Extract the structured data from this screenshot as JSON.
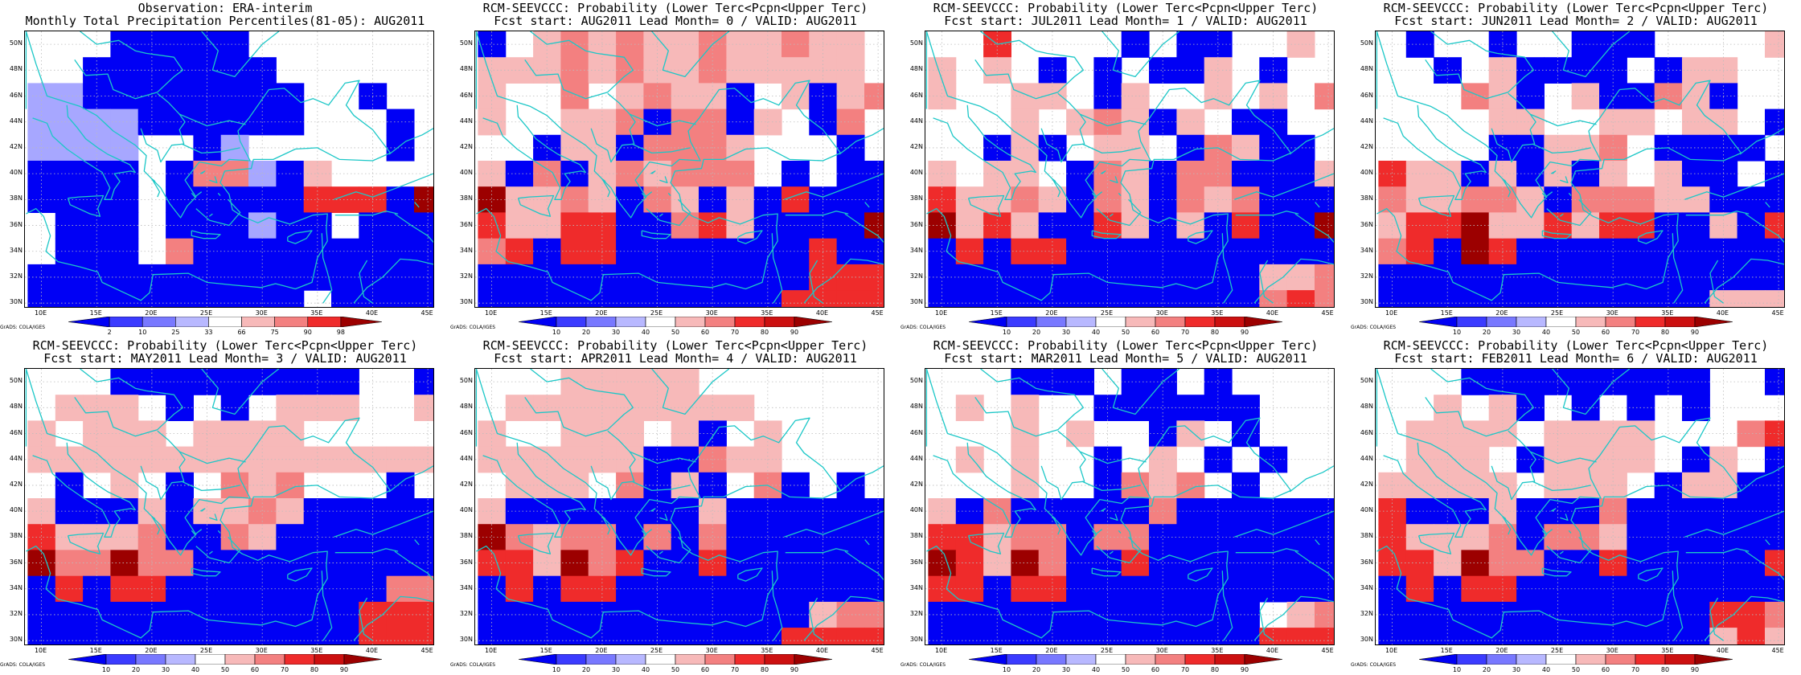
{
  "credit": "GrADS: COLA/IGES",
  "axes": {
    "xticks": [
      "10E",
      "15E",
      "20E",
      "25E",
      "30E",
      "35E",
      "40E",
      "45E"
    ],
    "xtick_values": [
      10,
      15,
      20,
      25,
      30,
      35,
      40,
      45
    ],
    "yticks": [
      "50N",
      "48N",
      "46N",
      "44N",
      "42N",
      "40N",
      "38N",
      "36N",
      "34N",
      "32N",
      "30N"
    ],
    "ytick_values": [
      50,
      48,
      46,
      44,
      42,
      40,
      38,
      36,
      34,
      32,
      30
    ],
    "lon_range": [
      8.5,
      45.5
    ],
    "lat_range": [
      29.7,
      51.0
    ]
  },
  "colors": {
    "coastline": "#1cc7c7",
    "gridlines": "#bbbbbb",
    "white": "#ffffff",
    "light_red": "#f7b9b9",
    "medium_red": "#f38080",
    "red": "#ef2b2b",
    "dark_red": "#9c0000",
    "blue": "#0000f5",
    "light_blue": "#a7a7ff"
  },
  "colorbars": {
    "obs": {
      "labels": [
        "2",
        "10",
        "25",
        "33",
        "66",
        "75",
        "90",
        "98"
      ],
      "colors": [
        "#0000f5",
        "#3b3bff",
        "#7878ff",
        "#b8b8ff",
        "#ffffff",
        "#f7b9b9",
        "#f38080",
        "#ef2b2b",
        "#9c0000"
      ]
    },
    "prob": {
      "labels": [
        "10",
        "20",
        "30",
        "40",
        "50",
        "60",
        "70",
        "80",
        "90"
      ],
      "colors": [
        "#0000f5",
        "#3b3bff",
        "#7878ff",
        "#b8b8ff",
        "#ffffff",
        "#f7b9b9",
        "#f38080",
        "#ef2b2b",
        "#cc1010",
        "#9c0000"
      ]
    }
  },
  "panels": [
    {
      "title_line1": "Observation: ERA-interim",
      "title_line2": "Monthly Total Precipitation Percentiles(81-05): AUG2011",
      "colorbar": "obs",
      "grid": [
        "000bbbbb0000000",
        "00bbbbbbb000000",
        "aabbbbbbbb00b00",
        "aaaabbbbbb000b0",
        "aaaa00ba00000b0",
        "bbbb0bmmabl0000",
        "bbbb0bbbbbrrrbd",
        "0bbb0bbbabb0bbb",
        "0bbb0mbbbbbbbbb",
        "bbbbbbbbbbbbbbb",
        "bbbbbbbbbb0bbbb",
        "bbbbbbbbbbbbbbb"
      ]
    },
    {
      "title_line1": "RCM-SEEVCCC: Probability (Lower Terc<Pcpn<Upper Terc)",
      "title_line2": "Fcst start: AUG2011  Lead Month= 0 / VALID: AUG2011",
      "colorbar": "prob",
      "grid": [
        "b0lmlmllmllmll0",
        "lllmlmllmlllll0",
        "l00m0lmllb0lblm",
        "l00llmbmmbl0bm0",
        "00bllbmmml000b0",
        "lbmblmlmmm0b0bb",
        "dllmlbmlblbrbbb",
        "rllrrbbmrlbbbbd",
        "mrbrrbbbbbbbrbb",
        "bbbbbbbbbbbbrrr",
        "bbbbbbbbbbbrrrr",
        "bbbbbbbbbbb0rrr"
      ]
    },
    {
      "title_line1": "RCM-SEEVCCC: Probability (Lower Terc<Pcpn<Upper Terc)",
      "title_line2": "Fcst start: JUL2011  Lead Month= 1 / VALID: AUG2011",
      "colorbar": "prob",
      "grid": [
        "00r0000b0bb00l0",
        "l0l0b0b0bbl0b00",
        "l00ll0bl00l0l0m",
        "000l0lmlbl0bb00",
        "00blb0ll0bmlbb0",
        "l0ll0bmlbmmbbbl",
        "rllmlbmlbmlmbbb",
        "dlrlbbrlblbrbbd",
        "brbrrbbbbbbbbbb",
        "bbbbbbbbbbbbllm",
        "bbbbbbbbbbbbmrm",
        "bbbbbbbbbbbblml"
      ]
    },
    {
      "title_line1": "RCM-SEEVCCC: Probability (Lower Terc<Pcpn<Upper Terc)",
      "title_line2": "Fcst start: JUN2011  Lead Month= 2 / VALID: AUG2011",
      "colorbar": "prob",
      "grid": [
        "0b00b00bbb0000l",
        "00b0lbbbb0bll00",
        "000mlb0lbbmlb00",
        "0000ll00ll0ll0b",
        "0000bbllm0bbbb0",
        "rllblblbl0lbb0b",
        "mllmmlbmmmllbbb",
        "lrrdllrlrrbblbr",
        "mrbdrbbbbbbbbbb",
        "bbbbbbbbbbbbbbb",
        "bbbbbbbbbbbblll",
        "bbbbbbbbbbbbmml"
      ]
    },
    {
      "title_line1": "RCM-SEEVCCC: Probability (Lower Terc<Pcpn<Upper Terc)",
      "title_line2": "Fcst start: MAY2011  Lead Month= 3 / VALID: AUG2011",
      "colorbar": "prob",
      "grid": [
        "000bbbbbbbbb00b",
        "0lll0b0b0lll00l",
        "l0lll0llll00000",
        "lllllllllllllll",
        "0b0l0b0mlm000b0",
        "lbbblbllmlbbbbb",
        "rlllmbbmlbbbbbb",
        "dmmdmmbbbbbbbbb",
        "brbrrbbbbbbbbmm",
        "bbbbbbbbbbbbrrr",
        "bbbbbbbbbbbbrrr",
        "bbbbbbbbbbbbrrr"
      ]
    },
    {
      "title_line1": "RCM-SEEVCCC: Probability (Lower Terc<Pcpn<Upper Terc)",
      "title_line2": "Fcst start: APR2011  Lead Month= 4 / VALID: AUG2011",
      "colorbar": "prob",
      "grid": [
        "000lllll0000000",
        "0lllllllll00000",
        "l00lll0lb0l0000",
        "llllllbbmll0000",
        "0lll0mblb0mb0b0",
        "lbbbbbbblbbbbbb",
        "dmlmmbmbmbbbbbb",
        "rrldmrbbrbbbbbb",
        "brbrrbbbbbbbbbb",
        "bbbbbbbbbbbblmm",
        "bbbbbbbbbbbrrrr",
        "bbbbbbbbbbbrrrr"
      ]
    },
    {
      "title_line1": "RCM-SEEVCCC: Probability (Lower Terc<Pcpn<Upper Terc)",
      "title_line2": "Fcst start: MAR2011  Lead Month= 5 / VALID: AUG2011",
      "colorbar": "prob",
      "grid": [
        "000bbb0bb0b0000",
        "0l0l00bbbbbb000",
        "000l0l00bl0b000",
        "0l0l00b0l0b0b00",
        "000l00bmlm0b000",
        "lbmbbbbbmbbbbbb",
        "rrlmmbmmbbbbbbb",
        "drldmbbrbbbbbbb",
        "rrbrrbbbbbbbbbb",
        "bbbbbbbbbbbb0lm",
        "bbbbbbbbbbbbrrr",
        "bbbbbbbbbbbbrrr"
      ]
    },
    {
      "title_line1": "RCM-SEEVCCC: Probability (Lower Terc<Pcpn<Upper Terc)",
      "title_line2": "Fcst start: FEB2011  Lead Month= 6 / VALID: AUG2011",
      "colorbar": "prob",
      "grid": [
        "000bbbbbbbbb00b",
        "00l0lb0b0b0b000",
        "0llll0llll000mr",
        "0lll0bllll0bl0b",
        "lllll0lll0bllbb",
        "rbbblbbbmbbbbbb",
        "rlllmbmmlbbbbbb",
        "rrldmmbbrbbbbbr",
        "brbrrbbbbbbbbbb",
        "bbbbbbbbbbbbrrm",
        "bbbbbbbbbbbblrl",
        "bbbbbbbbbbbbmml"
      ]
    }
  ],
  "coast": [
    [
      [
        8.6,
        51.0
      ],
      [
        9.5,
        48.5
      ],
      [
        10.5,
        46.0
      ],
      [
        12.0,
        45.6
      ],
      [
        13.5,
        45.2
      ],
      [
        15.0,
        44.5
      ],
      [
        16.5,
        43.3
      ],
      [
        18.5,
        42.2
      ],
      [
        19.5,
        41.4
      ],
      [
        19.3,
        40.2
      ],
      [
        20.8,
        38.9
      ],
      [
        21.6,
        37.7
      ],
      [
        22.6,
        36.6
      ],
      [
        23.2,
        37.5
      ],
      [
        24.0,
        38.2
      ],
      [
        23.0,
        39.5
      ],
      [
        24.3,
        40.9
      ],
      [
        26.3,
        40.6
      ],
      [
        27.0,
        41.1
      ],
      [
        28.9,
        41.0
      ],
      [
        28.0,
        42.5
      ],
      [
        27.8,
        43.3
      ],
      [
        28.8,
        44.3
      ],
      [
        30.6,
        46.5
      ],
      [
        32.0,
        46.6
      ],
      [
        33.5,
        45.5
      ],
      [
        34.6,
        45.8
      ],
      [
        36.0,
        45.3
      ],
      [
        37.5,
        47.0
      ],
      [
        38.8,
        47.2
      ],
      [
        37.6,
        45.3
      ],
      [
        38.3,
        44.5
      ],
      [
        40.0,
        43.4
      ],
      [
        41.6,
        41.6
      ],
      [
        40.0,
        41.0
      ],
      [
        37.0,
        41.1
      ],
      [
        35.0,
        42.0
      ],
      [
        33.0,
        41.9
      ],
      [
        31.0,
        41.1
      ],
      [
        29.2,
        41.1
      ],
      [
        29.0,
        40.4
      ],
      [
        26.6,
        40.2
      ],
      [
        26.2,
        39.3
      ],
      [
        27.0,
        38.4
      ],
      [
        27.3,
        37.2
      ],
      [
        28.2,
        36.7
      ],
      [
        29.6,
        36.2
      ],
      [
        30.6,
        36.6
      ],
      [
        32.5,
        36.1
      ],
      [
        34.6,
        36.8
      ],
      [
        35.9,
        36.9
      ],
      [
        35.8,
        35.8
      ],
      [
        35.9,
        34.8
      ],
      [
        35.0,
        33.5
      ],
      [
        34.5,
        31.6
      ],
      [
        33.0,
        31.1
      ],
      [
        31.2,
        31.5
      ],
      [
        29.9,
        31.2
      ],
      [
        27.3,
        31.4
      ],
      [
        25.0,
        31.6
      ],
      [
        23.3,
        32.3
      ],
      [
        20.1,
        32.2
      ],
      [
        19.8,
        30.8
      ],
      [
        19.0,
        30.2
      ],
      [
        17.5,
        30.8
      ],
      [
        15.5,
        31.6
      ],
      [
        15.1,
        32.4
      ],
      [
        13.5,
        32.8
      ],
      [
        11.5,
        33.2
      ],
      [
        10.4,
        34.0
      ],
      [
        10.8,
        35.2
      ],
      [
        10.2,
        36.7
      ],
      [
        9.5,
        37.3
      ],
      [
        8.6,
        36.9
      ]
    ],
    [
      [
        8.6,
        45.0
      ],
      [
        8.6,
        51.0
      ]
    ],
    [
      [
        9.2,
        44.3
      ],
      [
        10.5,
        43.9
      ],
      [
        11.0,
        42.9
      ],
      [
        12.3,
        41.9
      ],
      [
        14.0,
        40.9
      ],
      [
        15.5,
        40.1
      ],
      [
        16.2,
        38.9
      ],
      [
        15.7,
        38.0
      ],
      [
        16.3,
        38.0
      ],
      [
        16.6,
        38.8
      ],
      [
        17.1,
        39.4
      ],
      [
        16.6,
        40.0
      ],
      [
        18.1,
        40.2
      ],
      [
        18.5,
        40.1
      ],
      [
        18.0,
        40.7
      ],
      [
        16.0,
        41.5
      ],
      [
        15.1,
        42.0
      ],
      [
        14.0,
        42.7
      ],
      [
        13.2,
        43.6
      ],
      [
        12.4,
        44.4
      ],
      [
        12.3,
        45.3
      ]
    ],
    [
      [
        12.4,
        38.1
      ],
      [
        13.4,
        38.2
      ],
      [
        15.6,
        38.3
      ],
      [
        15.1,
        37.3
      ],
      [
        15.3,
        36.7
      ],
      [
        14.4,
        36.9
      ],
      [
        12.6,
        37.6
      ],
      [
        12.4,
        38.1
      ]
    ],
    [
      [
        23.6,
        35.6
      ],
      [
        24.5,
        35.4
      ],
      [
        26.2,
        35.3
      ],
      [
        25.8,
        35.0
      ],
      [
        24.7,
        35.0
      ],
      [
        23.6,
        35.2
      ],
      [
        23.6,
        35.6
      ]
    ],
    [
      [
        32.3,
        35.1
      ],
      [
        33.0,
        35.4
      ],
      [
        34.5,
        35.6
      ],
      [
        34.0,
        35.0
      ],
      [
        33.0,
        34.6
      ],
      [
        32.3,
        34.8
      ],
      [
        32.3,
        35.1
      ]
    ],
    [
      [
        38.3,
        30.0
      ],
      [
        39.5,
        31.2
      ],
      [
        40.9,
        32.0
      ],
      [
        42.5,
        33.4
      ],
      [
        44.0,
        33.3
      ],
      [
        45.5,
        33.0
      ]
    ],
    [
      [
        42.0,
        36.9
      ],
      [
        43.5,
        36.0
      ],
      [
        45.0,
        35.2
      ],
      [
        45.5,
        34.7
      ]
    ],
    [
      [
        41.5,
        41.5
      ],
      [
        43.0,
        42.5
      ],
      [
        44.5,
        43.0
      ],
      [
        45.5,
        43.5
      ]
    ],
    [
      [
        36.5,
        38.0
      ],
      [
        38.5,
        38.6
      ],
      [
        40.0,
        38.2
      ],
      [
        42.5,
        39.0
      ],
      [
        44.0,
        39.5
      ],
      [
        45.5,
        40.0
      ]
    ],
    [
      [
        35.4,
        35.4
      ],
      [
        35.5,
        33.5
      ],
      [
        35.9,
        32.4
      ],
      [
        36.3,
        31.0
      ],
      [
        35.5,
        30.0
      ]
    ],
    [
      [
        24.5,
        51.0
      ],
      [
        26.0,
        49.5
      ],
      [
        25.5,
        48.0
      ],
      [
        27.5,
        47.5
      ],
      [
        28.5,
        48.5
      ],
      [
        30.0,
        50.0
      ],
      [
        31.5,
        51.0
      ]
    ],
    [
      [
        13.5,
        51.0
      ],
      [
        15.0,
        50.0
      ],
      [
        17.0,
        50.3
      ],
      [
        18.5,
        49.5
      ],
      [
        19.5,
        49.3
      ],
      [
        22.0,
        49.0
      ],
      [
        22.8,
        48.0
      ],
      [
        22.0,
        47.5
      ],
      [
        20.5,
        46.3
      ],
      [
        18.5,
        45.8
      ],
      [
        16.5,
        46.5
      ],
      [
        16.0,
        47.7
      ],
      [
        14.0,
        47.6
      ],
      [
        13.0,
        48.8
      ]
    ],
    [
      [
        19.0,
        43.5
      ],
      [
        19.5,
        42.3
      ],
      [
        20.5,
        41.8
      ],
      [
        20.8,
        40.9
      ],
      [
        21.8,
        42.2
      ],
      [
        22.9,
        42.3
      ],
      [
        22.5,
        43.4
      ],
      [
        23.0,
        44.0
      ],
      [
        22.5,
        44.6
      ],
      [
        21.5,
        45.5
      ],
      [
        20.5,
        46.2
      ]
    ],
    [
      [
        22.5,
        44.6
      ],
      [
        25.0,
        43.7
      ],
      [
        27.0,
        44.1
      ],
      [
        28.5,
        43.8
      ]
    ],
    [
      [
        22.7,
        42.3
      ],
      [
        24.5,
        41.6
      ],
      [
        26.3,
        41.7
      ],
      [
        28.0,
        42.0
      ]
    ],
    [
      [
        39.5,
        33.3
      ],
      [
        38.8,
        32.3
      ],
      [
        39.2,
        30.5
      ],
      [
        40.0,
        30.0
      ]
    ],
    [
      [
        42.3,
        36.9
      ],
      [
        41.2,
        37.1
      ],
      [
        40.0,
        36.8
      ],
      [
        38.5,
        36.8
      ],
      [
        36.6,
        36.8
      ]
    ],
    [
      [
        26.9,
        38.0
      ],
      [
        28.0,
        37.0
      ],
      [
        27.0,
        36.0
      ],
      [
        25.2,
        36.4
      ],
      [
        24.0,
        37.3
      ]
    ],
    [
      [
        20.3,
        39.4
      ],
      [
        20.0,
        39.6
      ],
      [
        20.7,
        38.6
      ],
      [
        20.5,
        38.2
      ]
    ],
    [
      [
        24.5,
        40.0
      ],
      [
        24.8,
        40.2
      ],
      [
        24.4,
        40.0
      ]
    ],
    [
      [
        25.2,
        39.5
      ],
      [
        25.9,
        39.3
      ],
      [
        25.7,
        39.8
      ]
    ],
    [
      [
        26.2,
        38.3
      ],
      [
        26.0,
        38.5
      ]
    ],
    [
      [
        24.5,
        38.6
      ],
      [
        23.9,
        38.2
      ],
      [
        23.6,
        38.5
      ]
    ],
    [
      [
        43.8,
        37.8
      ],
      [
        44.2,
        37.4
      ]
    ],
    [
      [
        25.5,
        36.9
      ],
      [
        25.2,
        36.7
      ]
    ]
  ]
}
